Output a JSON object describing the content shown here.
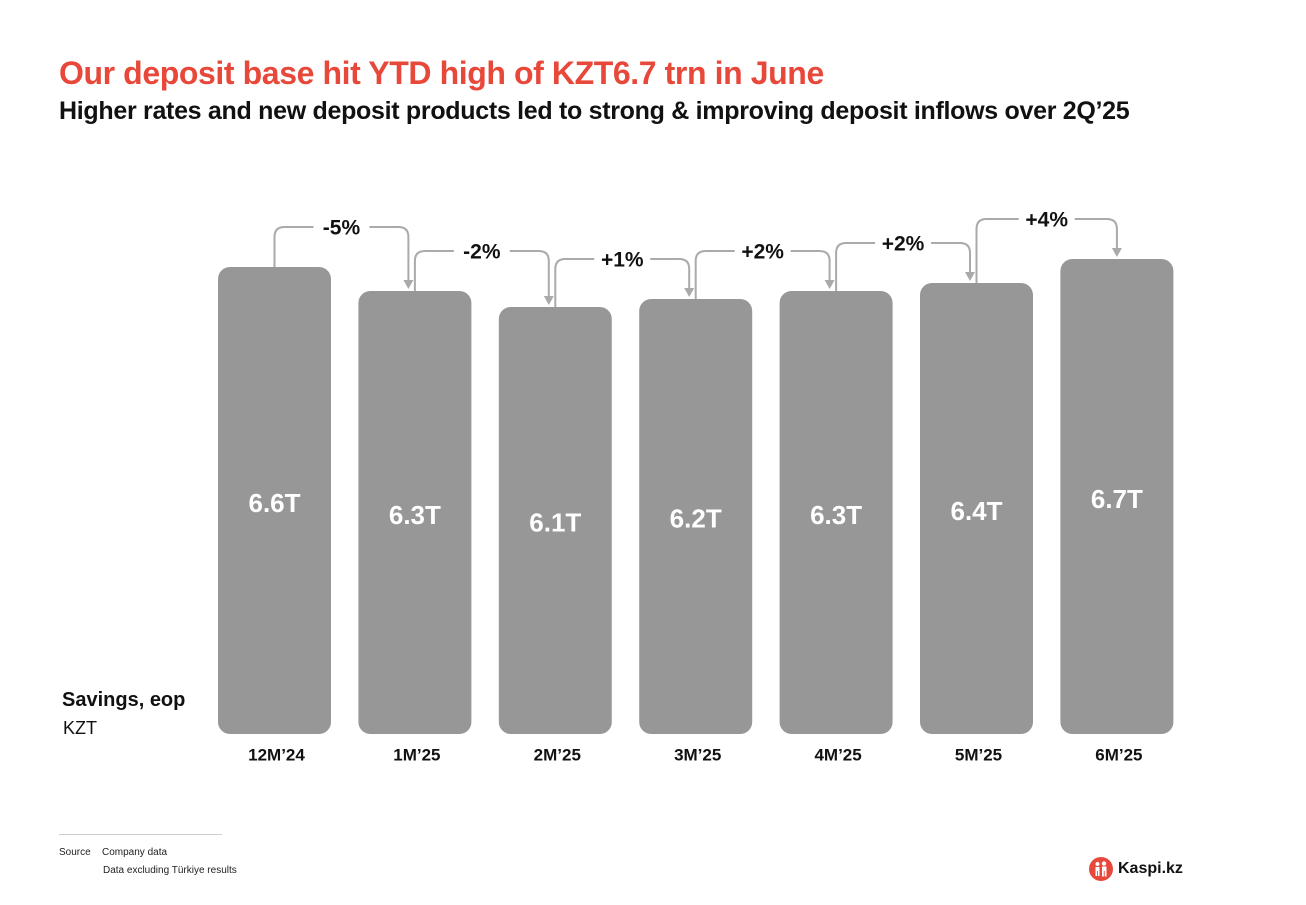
{
  "header": {
    "title": "Our deposit base hit YTD high of KZT6.7 trn in June",
    "subtitle": "Higher rates and new deposit products led to strong & improving deposit inflows over 2Q’25"
  },
  "metric": {
    "name": "Savings, eop",
    "unit": "KZT"
  },
  "chart_data": {
    "type": "bar",
    "categories": [
      "12M’24",
      "1M’25",
      "2M’25",
      "3M’25",
      "4M’25",
      "5M’25",
      "6M’25"
    ],
    "values": [
      6.6,
      6.3,
      6.1,
      6.2,
      6.3,
      6.4,
      6.7
    ],
    "value_labels": [
      "6.6T",
      "6.3T",
      "6.1T",
      "6.2T",
      "6.3T",
      "6.4T",
      "6.7T"
    ],
    "changes": [
      "-5%",
      "-2%",
      "+1%",
      "+2%",
      "+2%",
      "+4%"
    ],
    "title": "",
    "xlabel": "",
    "ylabel": "",
    "ylim": [
      0,
      6.8
    ],
    "grid": false,
    "bar_color": "#979797",
    "connector_color": "#aaaaaa"
  },
  "footer": {
    "source_label": "Source",
    "source_text": "Company data",
    "note": "Data excluding Türkiye results",
    "brand": "Kaspi.kz",
    "brand_color": "#e8483a"
  }
}
